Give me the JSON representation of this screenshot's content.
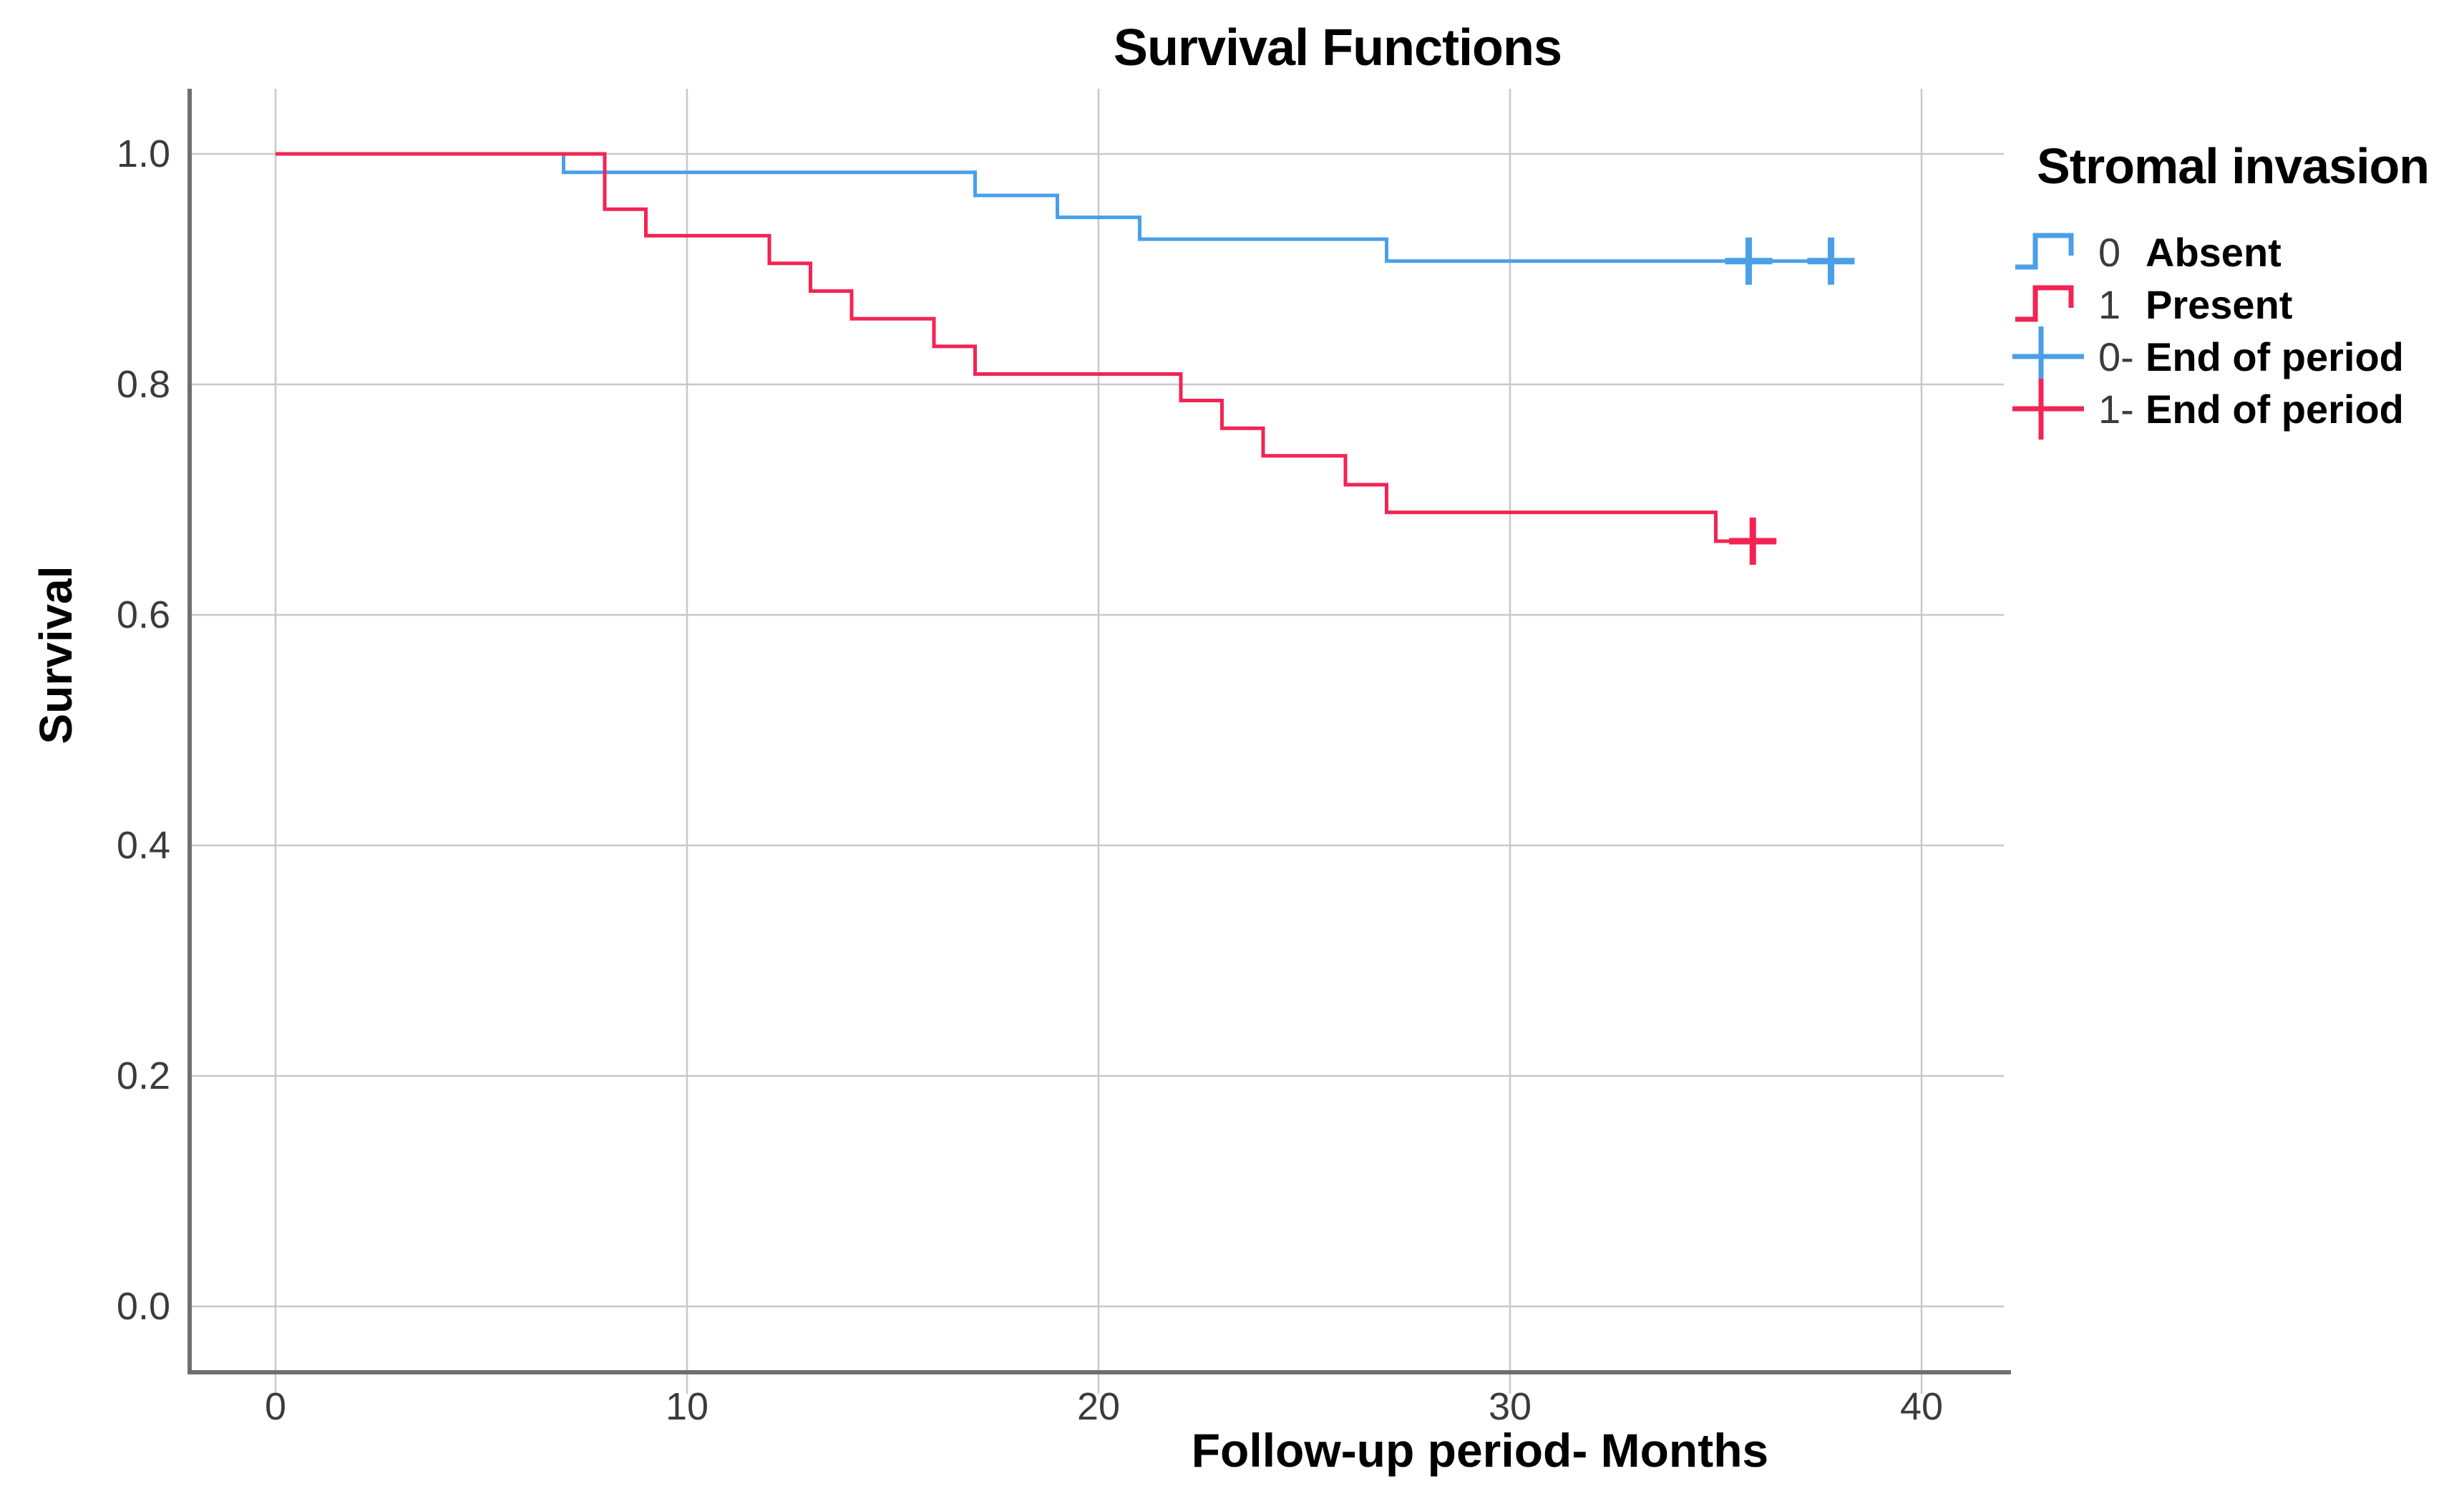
{
  "chart_data": {
    "type": "line",
    "subtype": "kaplan_meier_step",
    "title": "Survival Functions",
    "xlabel": "Follow-up period- Months",
    "ylabel": "Survival",
    "xticks": [
      0,
      10,
      20,
      30,
      40
    ],
    "yticks": [
      1.0,
      0.8,
      0.6,
      0.4,
      0.2,
      0.0
    ],
    "xlim": [
      -2,
      42
    ],
    "ylim": [
      -0.06,
      1.06
    ],
    "grid": true,
    "legend": {
      "title": "Stromal invasion",
      "position": "right",
      "entries": [
        {
          "code": "0",
          "label": "Absent",
          "marker": "step-line",
          "color": "#4A9FE8"
        },
        {
          "code": "1",
          "label": "Present",
          "marker": "step-line",
          "color": "#F22453"
        },
        {
          "code": "0-",
          "label": "End of period",
          "marker": "censor-plus",
          "color": "#4A9FE8"
        },
        {
          "code": "1-",
          "label": "End of period",
          "marker": "censor-plus",
          "color": "#F22453"
        }
      ]
    },
    "series": [
      {
        "name": "Absent",
        "group_code": "0",
        "color": "#4A9FE8",
        "steps": [
          [
            0,
            1.0
          ],
          [
            7,
            0.984
          ],
          [
            17,
            0.964
          ],
          [
            19,
            0.945
          ],
          [
            21,
            0.926
          ],
          [
            27,
            0.907
          ]
        ],
        "end_x": 38.2,
        "censored_points": [
          [
            35.8,
            0.907
          ],
          [
            37.8,
            0.907
          ]
        ]
      },
      {
        "name": "Present",
        "group_code": "1",
        "color": "#F22453",
        "steps": [
          [
            0,
            1.0
          ],
          [
            8,
            0.952
          ],
          [
            9,
            0.929
          ],
          [
            12,
            0.905
          ],
          [
            13,
            0.881
          ],
          [
            14,
            0.857
          ],
          [
            16,
            0.833
          ],
          [
            17,
            0.809
          ],
          [
            22,
            0.786
          ],
          [
            23,
            0.762
          ],
          [
            24,
            0.738
          ],
          [
            26,
            0.713
          ],
          [
            27,
            0.689
          ],
          [
            35,
            0.664
          ]
        ],
        "end_x": 36.3,
        "censored_points": [
          [
            35.9,
            0.664
          ]
        ]
      }
    ]
  }
}
